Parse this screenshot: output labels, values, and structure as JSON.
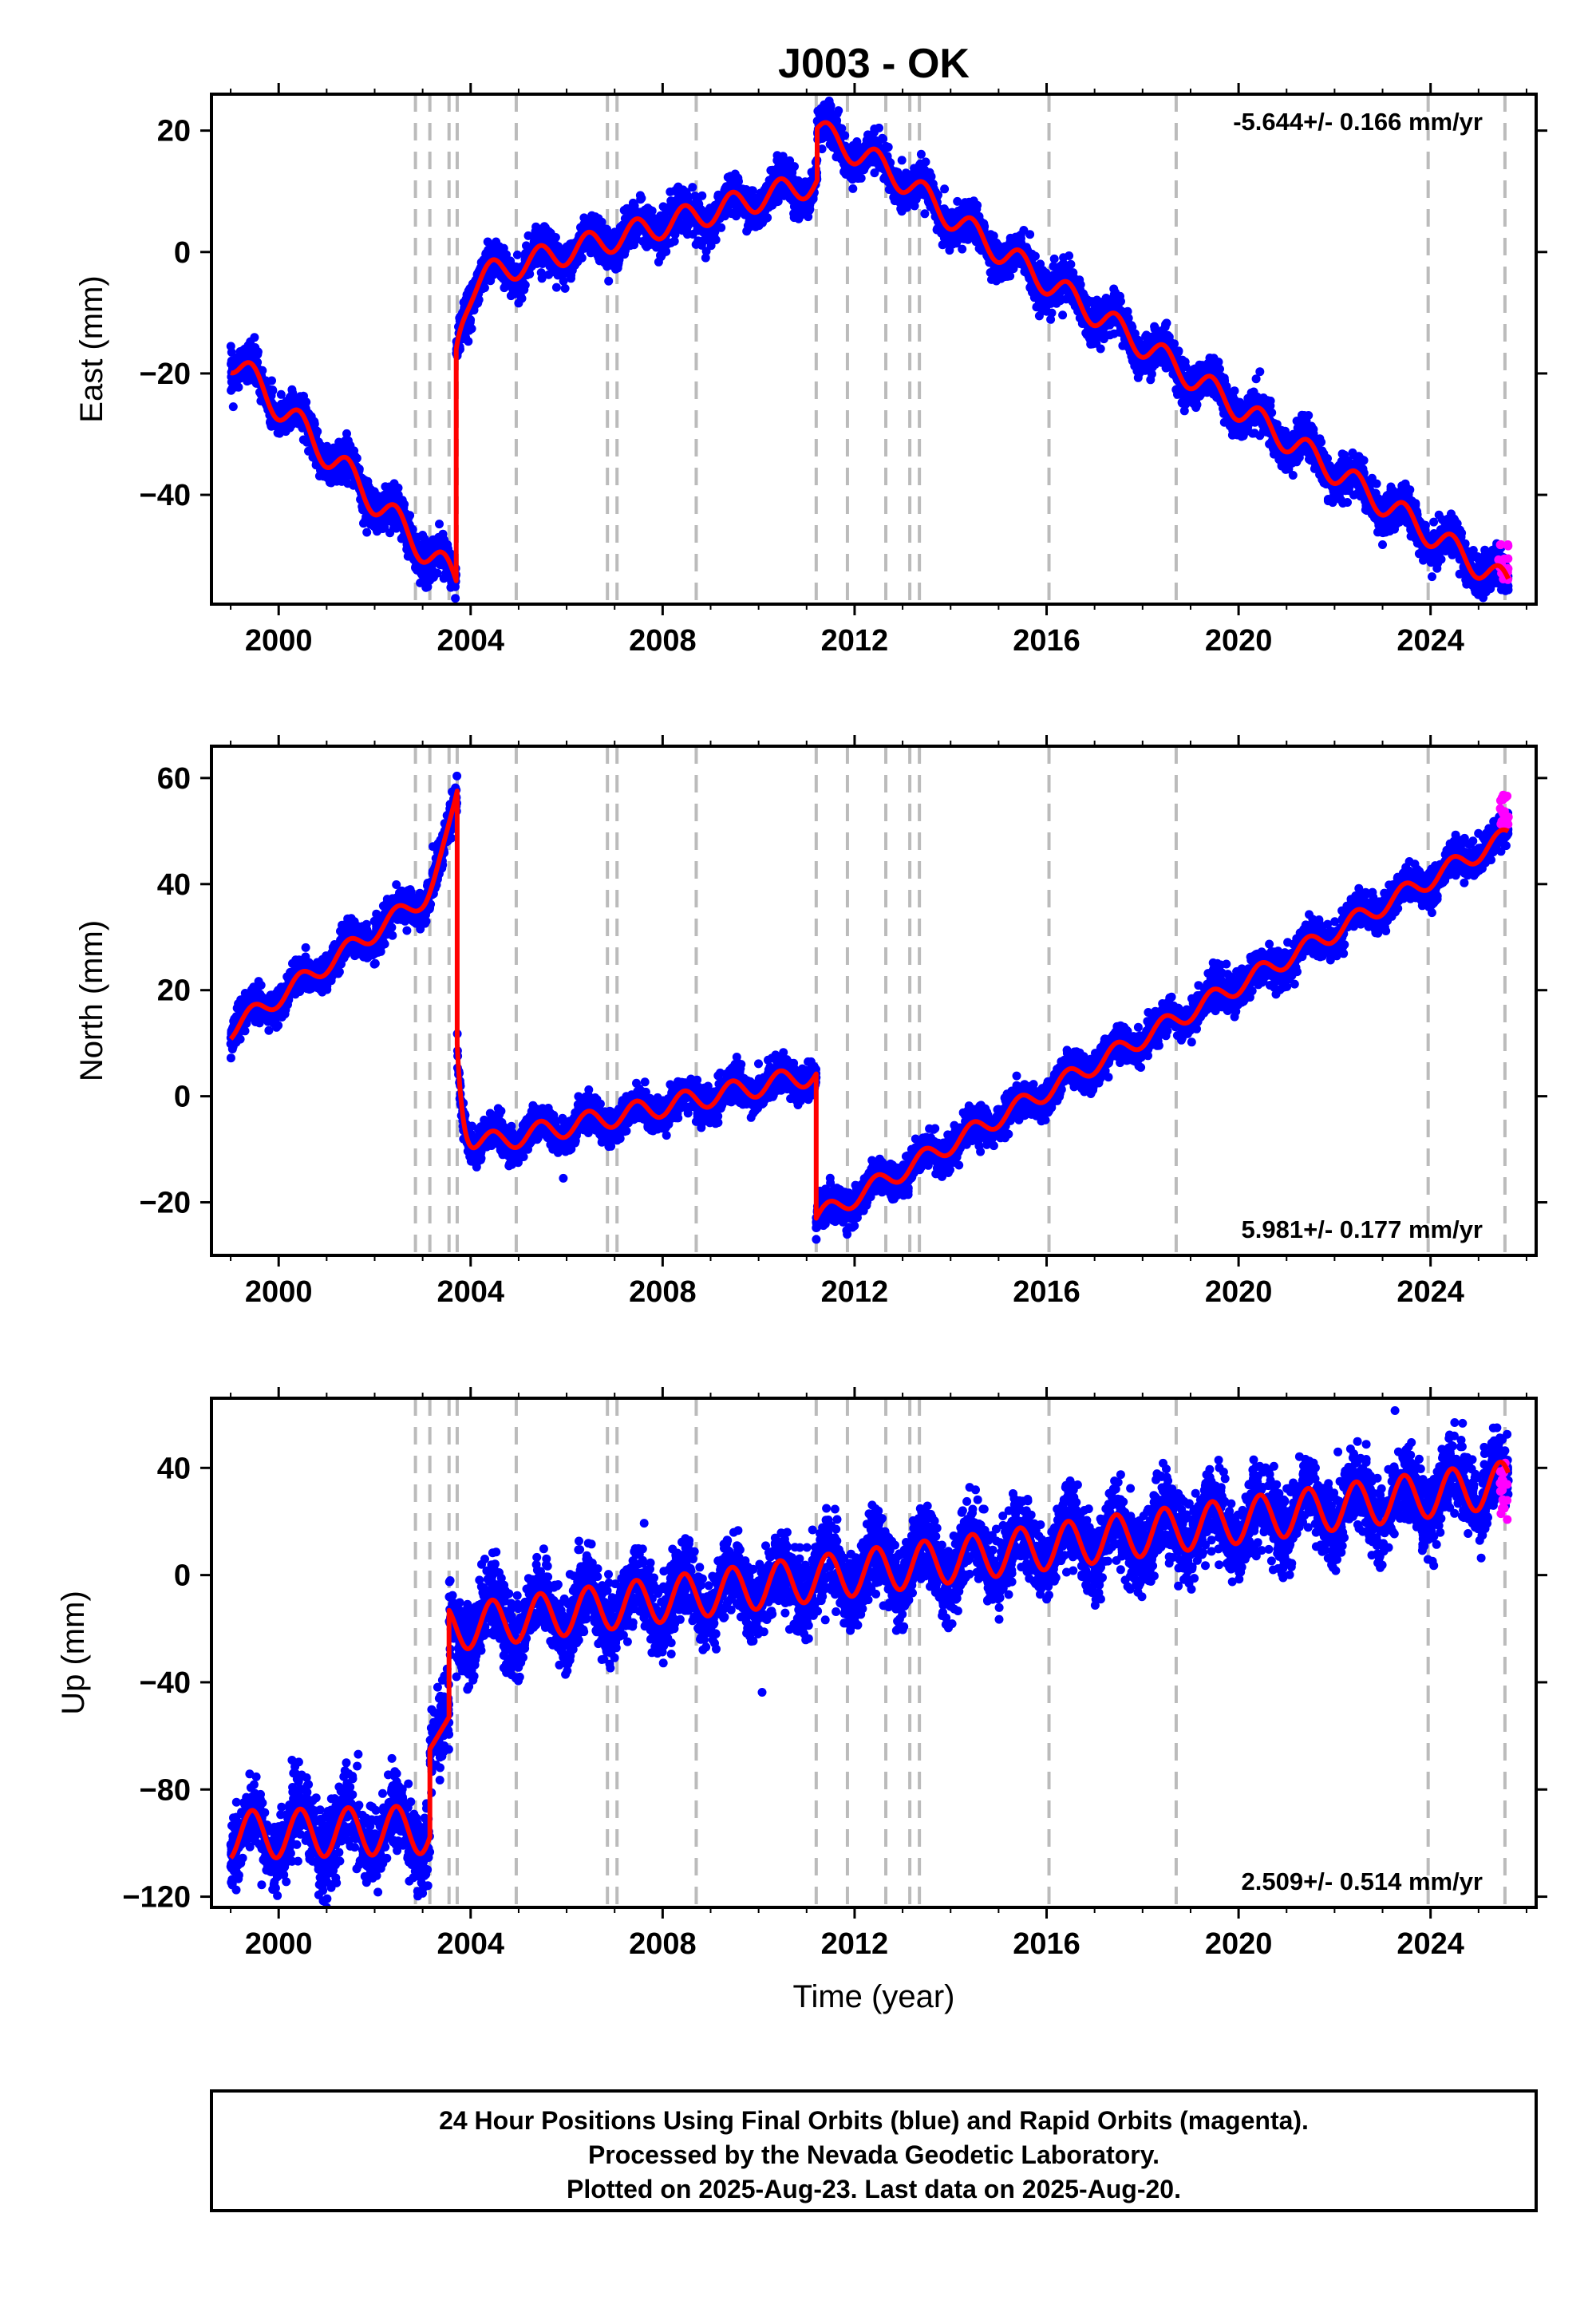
{
  "title": "J003 - OK",
  "footer": {
    "line1": "24 Hour Positions Using Final Orbits (blue) and Rapid Orbits (magenta).",
    "line2": "Processed by the Nevada Geodetic Laboratory.",
    "line3": "Plotted on 2025-Aug-23. Last data on 2025-Aug-20."
  },
  "colors": {
    "final_orbits": "#0000ff",
    "rapid_orbits": "#ff00ff",
    "model": "#ff0000",
    "event_lines": "#bbbbbb",
    "frame": "#000000"
  },
  "chart_data": [
    {
      "type": "scatter",
      "panel": "east",
      "ylabel": "East (mm)",
      "xlim": [
        1998.6,
        2026.2
      ],
      "ylim": [
        -58,
        26
      ],
      "xticks": [
        "2000",
        "2004",
        "2008",
        "2012",
        "2016",
        "2020",
        "2024"
      ],
      "yticks": [
        "20",
        "0",
        "−20",
        "−40"
      ],
      "xtick_values": [
        2000,
        2004,
        2008,
        2012,
        2016,
        2020,
        2024
      ],
      "ytick_values": [
        20,
        0,
        -20,
        -40
      ],
      "rate": "-5.644+/- 0.166 mm/yr",
      "rate_position": "top-right",
      "event_lines": [
        2002.85,
        2003.15,
        2003.55,
        2003.72,
        2004.95,
        2006.85,
        2007.05,
        2008.7,
        2011.2,
        2011.85,
        2012.65,
        2013.15,
        2013.35,
        2016.05,
        2018.7,
        2023.95,
        2025.55
      ],
      "model_series": [
        {
          "x": [
            1999.0,
            2003.7
          ],
          "start": -17.5,
          "rate": -7.8,
          "amp": 2.5
        },
        {
          "x": [
            2003.7,
            2011.22
          ],
          "start": -5,
          "rate": 2.2,
          "amp": 2.2,
          "transient": {
            "amp": -11,
            "tau": 0.18
          }
        },
        {
          "x": [
            2011.22,
            2025.62
          ],
          "start": 20,
          "rate": -5.2,
          "amp": 2.2,
          "hump": {
            "center": 2012.8,
            "width": 1.0,
            "amp": 1.2
          }
        }
      ],
      "rapid_points": {
        "x_start": 2025.4,
        "x_end": 2025.63,
        "y_center": -51,
        "spread": 3
      }
    },
    {
      "type": "scatter",
      "panel": "north",
      "ylabel": "North (mm)",
      "xlim": [
        1998.6,
        2026.2
      ],
      "ylim": [
        -30,
        66
      ],
      "xticks": [
        "2000",
        "2004",
        "2008",
        "2012",
        "2016",
        "2020",
        "2024"
      ],
      "yticks": [
        "60",
        "40",
        "20",
        "0",
        "−20"
      ],
      "xtick_values": [
        2000,
        2004,
        2008,
        2012,
        2016,
        2020,
        2024
      ],
      "ytick_values": [
        60,
        40,
        20,
        0,
        -20
      ],
      "rate": "5.981+/- 0.177 mm/yr",
      "rate_position": "bottom-right",
      "event_lines": [
        2002.85,
        2003.15,
        2003.55,
        2003.72,
        2004.95,
        2006.85,
        2007.05,
        2008.7,
        2011.2,
        2011.85,
        2012.65,
        2013.15,
        2013.35,
        2016.05,
        2018.7,
        2023.95,
        2025.55
      ],
      "model_series": [
        {
          "x": [
            1999.0,
            2003.72
          ],
          "start": 12.5,
          "rate": 6.2,
          "amp": 1.8,
          "accel": {
            "start": 2003.0,
            "amp": 16
          }
        },
        {
          "x": [
            2003.72,
            2011.2
          ],
          "start": -10,
          "rate": 1.9,
          "amp": 2.0,
          "transient": {
            "amp": 20,
            "tau": 0.12
          }
        },
        {
          "x": [
            2011.2,
            2025.62
          ],
          "start": -23,
          "rate": 5.0,
          "amp": 1.8
        }
      ],
      "rapid_points": {
        "x_start": 2025.45,
        "x_end": 2025.63,
        "y_center": 54,
        "spread": 3
      }
    },
    {
      "type": "scatter",
      "panel": "up",
      "ylabel": "Up (mm)",
      "xlabel": "Time (year)",
      "xlim": [
        1998.6,
        2026.2
      ],
      "ylim": [
        -124,
        66
      ],
      "xticks": [
        "2000",
        "2004",
        "2008",
        "2012",
        "2016",
        "2020",
        "2024"
      ],
      "yticks": [
        "40",
        "0",
        "−40",
        "−80",
        "−120"
      ],
      "xtick_values": [
        2000,
        2004,
        2008,
        2012,
        2016,
        2020,
        2024
      ],
      "ytick_values": [
        40,
        0,
        -40,
        -80,
        -120
      ],
      "rate": "2.509+/- 0.514 mm/yr",
      "rate_position": "bottom-right",
      "event_lines": [
        2002.85,
        2003.15,
        2003.55,
        2003.72,
        2004.95,
        2006.85,
        2007.05,
        2008.7,
        2011.2,
        2011.85,
        2012.65,
        2013.15,
        2013.35,
        2016.05,
        2018.7,
        2023.95,
        2025.55
      ],
      "model_series": [
        {
          "x": [
            1999.0,
            2003.15
          ],
          "start": -97,
          "rate": 0.5,
          "amp": 9
        },
        {
          "x": [
            2003.15,
            2003.55
          ],
          "start": -65,
          "rate": 30,
          "amp": 0
        },
        {
          "x": [
            2003.55,
            2025.62
          ],
          "start": -20,
          "rate": 2.45,
          "amp": 8.5
        }
      ],
      "rapid_points": {
        "x_start": 2025.45,
        "x_end": 2025.63,
        "y_center": 30,
        "spread": 12
      }
    }
  ]
}
